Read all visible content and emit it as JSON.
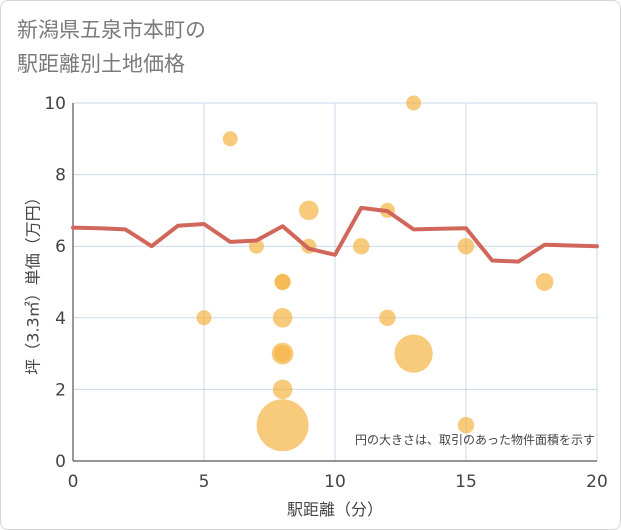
{
  "title": "新潟県五泉市本町の\n駅距離別土地価格",
  "chart_data": {
    "type": "scatter",
    "title": "新潟県五泉市本町の駅距離別土地価格",
    "xlabel": "駅距離（分）",
    "ylabel": "坪（3.3㎡）単価（万円）",
    "xlim": [
      0,
      20
    ],
    "ylim": [
      0,
      10
    ],
    "x_ticks": [
      "0",
      "5",
      "10",
      "15",
      "20"
    ],
    "y_ticks": [
      "0",
      "2",
      "4",
      "6",
      "8",
      "10"
    ],
    "grid": true,
    "note": "円の大きさは、取引のあった物件面積を示す",
    "colors": {
      "bubble": "#f5b548",
      "line": "#d0675a",
      "grid": "#c9d8ea",
      "axis": "#555555"
    },
    "scatter_points": [
      {
        "x": 5,
        "y": 4,
        "size": 1
      },
      {
        "x": 6,
        "y": 9,
        "size": 1
      },
      {
        "x": 7,
        "y": 6,
        "size": 1
      },
      {
        "x": 8,
        "y": 5,
        "size": 1.2
      },
      {
        "x": 8,
        "y": 5,
        "size": 1.1
      },
      {
        "x": 8,
        "y": 4,
        "size": 1.7
      },
      {
        "x": 8,
        "y": 3,
        "size": 2.1
      },
      {
        "x": 8,
        "y": 3,
        "size": 1.3
      },
      {
        "x": 8,
        "y": 2,
        "size": 1.7
      },
      {
        "x": 8,
        "y": 1,
        "size": 12
      },
      {
        "x": 9,
        "y": 7,
        "size": 1.7
      },
      {
        "x": 9,
        "y": 6,
        "size": 1
      },
      {
        "x": 11,
        "y": 6,
        "size": 1.2
      },
      {
        "x": 12,
        "y": 7,
        "size": 1
      },
      {
        "x": 12,
        "y": 4,
        "size": 1.2
      },
      {
        "x": 13,
        "y": 10,
        "size": 1
      },
      {
        "x": 13,
        "y": 3,
        "size": 6.5
      },
      {
        "x": 15,
        "y": 6,
        "size": 1.2
      },
      {
        "x": 15,
        "y": 1,
        "size": 1.2
      },
      {
        "x": 18,
        "y": 5,
        "size": 1.4
      }
    ],
    "trend_line": [
      {
        "x": 0,
        "y": 6.52
      },
      {
        "x": 1,
        "y": 6.5
      },
      {
        "x": 2,
        "y": 6.47
      },
      {
        "x": 3,
        "y": 6.0
      },
      {
        "x": 4,
        "y": 6.57
      },
      {
        "x": 5,
        "y": 6.62
      },
      {
        "x": 6,
        "y": 6.12
      },
      {
        "x": 7,
        "y": 6.16
      },
      {
        "x": 8,
        "y": 6.56
      },
      {
        "x": 9,
        "y": 5.93
      },
      {
        "x": 10,
        "y": 5.76
      },
      {
        "x": 11,
        "y": 7.07
      },
      {
        "x": 12,
        "y": 6.98
      },
      {
        "x": 13,
        "y": 6.47
      },
      {
        "x": 14,
        "y": 6.49
      },
      {
        "x": 15,
        "y": 6.5
      },
      {
        "x": 16,
        "y": 5.6
      },
      {
        "x": 17,
        "y": 5.57
      },
      {
        "x": 18,
        "y": 6.04
      },
      {
        "x": 19,
        "y": 6.02
      },
      {
        "x": 20,
        "y": 6.0
      }
    ]
  }
}
